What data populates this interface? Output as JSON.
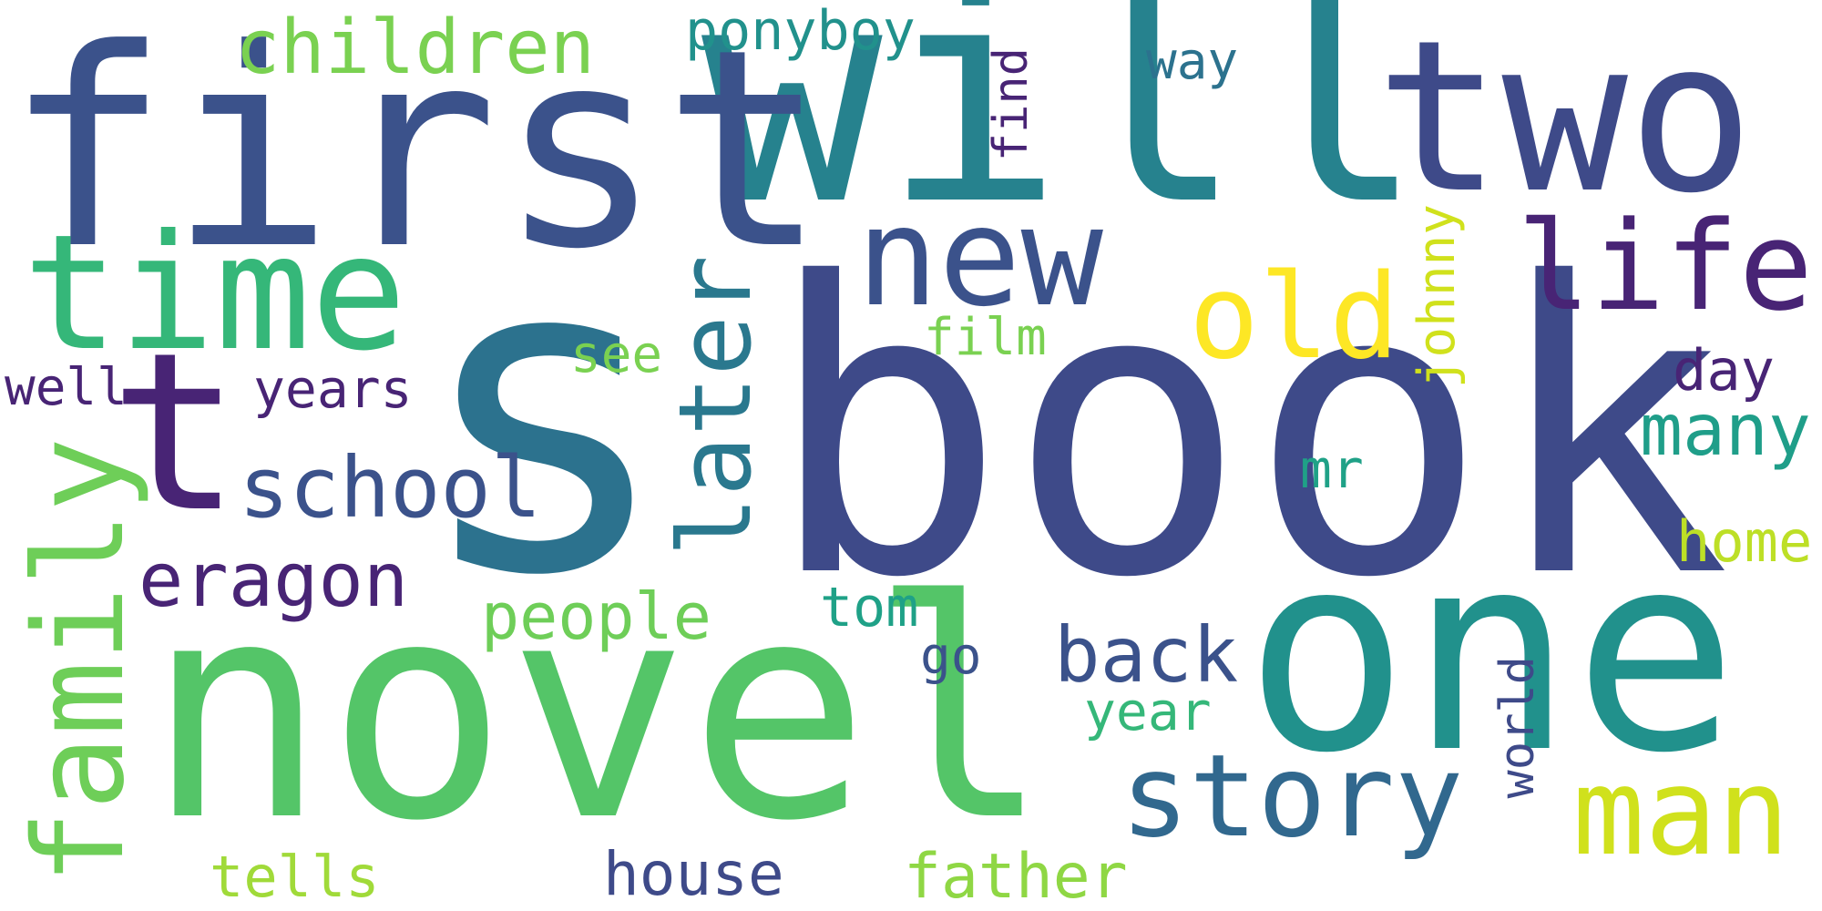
{
  "words": [
    {
      "text": "s",
      "color": "#2c728e"
    },
    {
      "text": "book",
      "color": "#3e4a89"
    },
    {
      "text": "will",
      "color": "#26828e"
    },
    {
      "text": "novel",
      "color": "#54c568"
    },
    {
      "text": "one",
      "color": "#21918c"
    },
    {
      "text": "first",
      "color": "#3b528b"
    },
    {
      "text": "two",
      "color": "#3e4a89"
    },
    {
      "text": "t",
      "color": "#482475"
    },
    {
      "text": "time",
      "color": "#35b779"
    },
    {
      "text": "new",
      "color": "#3b528b"
    },
    {
      "text": "family",
      "color": "#6ece58"
    },
    {
      "text": "later",
      "color": "#2a788e"
    },
    {
      "text": "story",
      "color": "#31688e"
    },
    {
      "text": "man",
      "color": "#d0e11c"
    },
    {
      "text": "life",
      "color": "#482475"
    },
    {
      "text": "old",
      "color": "#fde725"
    },
    {
      "text": "children",
      "color": "#7ad151"
    },
    {
      "text": "school",
      "color": "#3b528b"
    },
    {
      "text": "eragon",
      "color": "#482475"
    },
    {
      "text": "back",
      "color": "#3b528b"
    },
    {
      "text": "many",
      "color": "#1f9e89"
    },
    {
      "text": "people",
      "color": "#6ece58"
    },
    {
      "text": "ponyboy",
      "color": "#21918c"
    },
    {
      "text": "house",
      "color": "#3e4a89"
    },
    {
      "text": "father",
      "color": "#8fd744"
    },
    {
      "text": "tells",
      "color": "#a0da39"
    },
    {
      "text": "home",
      "color": "#bddf26"
    },
    {
      "text": "years",
      "color": "#482475"
    },
    {
      "text": "well",
      "color": "#482475"
    },
    {
      "text": "film",
      "color": "#7ad151"
    },
    {
      "text": "see",
      "color": "#7ad151"
    },
    {
      "text": "johnny",
      "color": "#d0e11c"
    },
    {
      "text": "day",
      "color": "#482475"
    },
    {
      "text": "tom",
      "color": "#1fa187"
    },
    {
      "text": "year",
      "color": "#35b779"
    },
    {
      "text": "mr",
      "color": "#1fa187"
    },
    {
      "text": "world",
      "color": "#3e4a89"
    },
    {
      "text": "way",
      "color": "#2c728e"
    },
    {
      "text": "find",
      "color": "#482475"
    },
    {
      "text": "go",
      "color": "#3b528b"
    }
  ]
}
